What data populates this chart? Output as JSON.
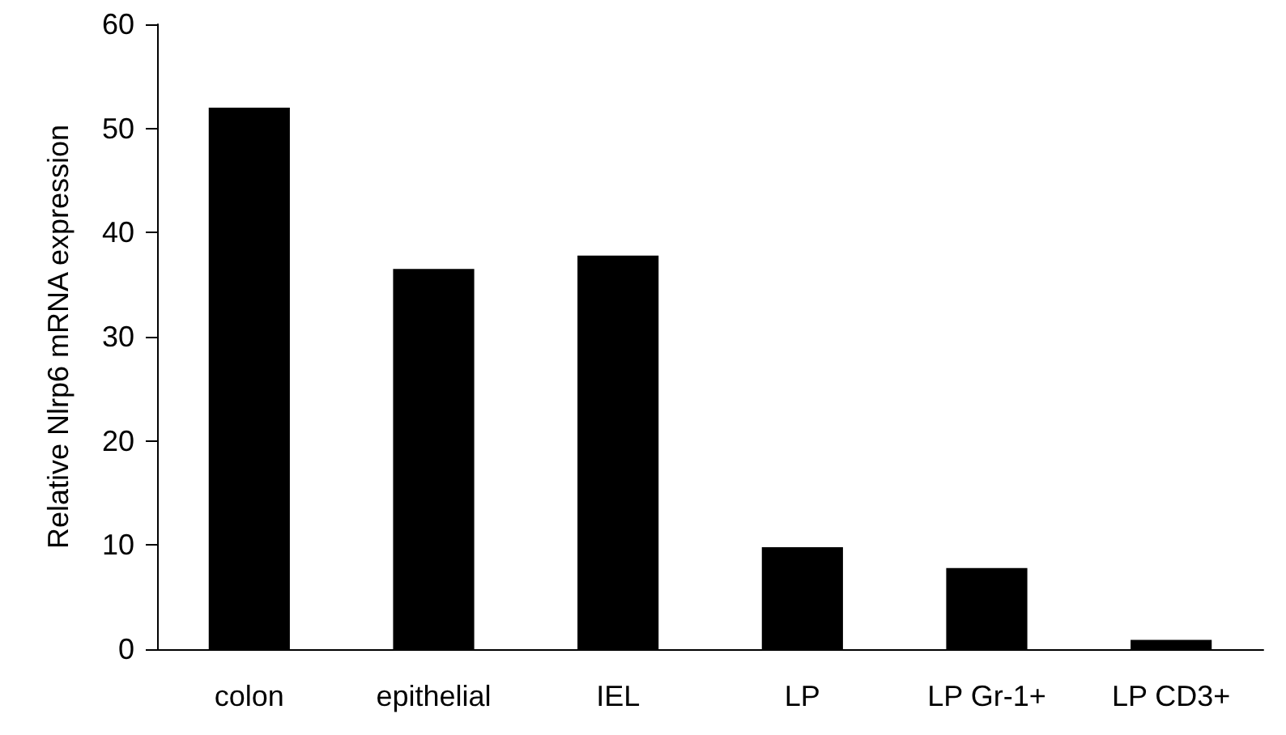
{
  "chart_data": {
    "type": "bar",
    "ylabel": "Relative Nlrp6 mRNA expression",
    "categories": [
      "colon",
      "epithelial",
      "IEL",
      "LP",
      "LP Gr-1+",
      "LP CD3+"
    ],
    "values": [
      52,
      36.5,
      37.8,
      9.8,
      7.8,
      0.9
    ],
    "color": "#000000",
    "ylim": [
      0,
      60
    ],
    "yticks": [
      0,
      10,
      20,
      30,
      40,
      50,
      60
    ],
    "grid": false
  }
}
